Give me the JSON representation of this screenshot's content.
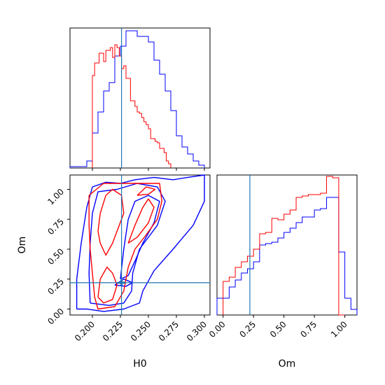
{
  "chart_data": [
    {
      "id": "hist-h0",
      "type": "histogram",
      "xlim": [
        0.18,
        0.305
      ],
      "xticks": [
        0.2,
        0.225,
        0.25,
        0.275,
        0.3
      ],
      "truth": 0.226,
      "truth_color": "#1f77b4",
      "series": [
        {
          "color": "#0000ff",
          "bins": [
            0.18,
            0.185,
            0.19,
            0.195,
            0.2,
            0.205,
            0.21,
            0.215,
            0.22,
            0.225,
            0.23,
            0.235,
            0.24,
            0.245,
            0.25,
            0.255,
            0.26,
            0.265,
            0.27,
            0.275,
            0.28,
            0.285,
            0.29,
            0.295,
            0.3
          ],
          "counts": [
            0.01,
            0.01,
            0.01,
            0.05,
            0.25,
            0.4,
            0.55,
            0.61,
            0.8,
            0.87,
            0.98,
            0.98,
            0.94,
            0.94,
            0.9,
            0.77,
            0.67,
            0.55,
            0.41,
            0.23,
            0.15,
            0.1,
            0.05,
            0.02
          ]
        },
        {
          "color": "#ff0000",
          "bins": [
            0.2,
            0.202,
            0.204,
            0.206,
            0.208,
            0.21,
            0.212,
            0.214,
            0.216,
            0.218,
            0.22,
            0.222,
            0.224,
            0.226,
            0.228,
            0.23,
            0.232,
            0.234,
            0.236,
            0.238,
            0.24,
            0.242,
            0.244,
            0.246,
            0.248,
            0.25,
            0.252,
            0.254,
            0.256,
            0.258,
            0.26,
            0.262,
            0.264,
            0.266,
            0.268,
            0.27
          ],
          "counts": [
            0.66,
            0.75,
            0.75,
            0.82,
            0.82,
            0.76,
            0.84,
            0.84,
            0.86,
            0.79,
            0.88,
            0.86,
            0.8,
            0.71,
            0.73,
            0.64,
            0.64,
            0.48,
            0.48,
            0.44,
            0.4,
            0.39,
            0.36,
            0.33,
            0.31,
            0.28,
            0.21,
            0.21,
            0.19,
            0.18,
            0.14,
            0.14,
            0.11,
            0.05,
            0.03
          ]
        }
      ]
    },
    {
      "id": "contour-h0-om",
      "type": "contour",
      "xlabel": "H0",
      "ylabel": "Om",
      "xlim": [
        0.18,
        0.305
      ],
      "ylim": [
        -0.05,
        1.12
      ],
      "xticks": [
        0.2,
        0.225,
        0.25,
        0.275,
        0.3
      ],
      "yticks": [
        0.0,
        0.25,
        0.5,
        0.75,
        1.0
      ],
      "xticklabels": [
        "0.200",
        "0.225",
        "0.250",
        "0.275",
        "0.300"
      ],
      "yticklabels": [
        "0.00",
        "0.25",
        "0.50",
        "0.75",
        "1.00"
      ],
      "truth_x": 0.226,
      "truth_y": 0.22,
      "truth_color": "#1f77b4",
      "series": [
        {
          "color": "#0000ff",
          "contours": [
            [
              [
                0.186,
                0.0
              ],
              [
                0.186,
                0.25
              ],
              [
                0.19,
                0.55
              ],
              [
                0.195,
                0.85
              ],
              [
                0.2,
                1.02
              ],
              [
                0.212,
                1.06
              ],
              [
                0.225,
                1.05
              ],
              [
                0.238,
                1.08
              ],
              [
                0.255,
                1.1
              ],
              [
                0.272,
                1.08
              ],
              [
                0.285,
                1.1
              ],
              [
                0.3,
                1.12
              ],
              [
                0.3,
                0.9
              ],
              [
                0.29,
                0.7
              ],
              [
                0.272,
                0.5
              ],
              [
                0.255,
                0.32
              ],
              [
                0.245,
                0.15
              ],
              [
                0.242,
                0.05
              ],
              [
                0.228,
                0.0
              ],
              [
                0.21,
                -0.02
              ],
              [
                0.195,
                0.0
              ],
              [
                0.186,
                0.0
              ]
            ],
            [
              [
                0.198,
                0.05
              ],
              [
                0.197,
                0.3
              ],
              [
                0.198,
                0.55
              ],
              [
                0.2,
                0.8
              ],
              [
                0.205,
                0.98
              ],
              [
                0.222,
                1.0
              ],
              [
                0.24,
                1.05
              ],
              [
                0.258,
                1.02
              ],
              [
                0.265,
                0.9
              ],
              [
                0.258,
                0.7
              ],
              [
                0.242,
                0.5
              ],
              [
                0.236,
                0.3
              ],
              [
                0.235,
                0.15
              ],
              [
                0.228,
                0.05
              ],
              [
                0.215,
                0.03
              ],
              [
                0.198,
                0.05
              ]
            ],
            [
              [
                0.225,
                0.25
              ],
              [
                0.228,
                0.5
              ],
              [
                0.232,
                0.75
              ],
              [
                0.238,
                0.9
              ],
              [
                0.25,
                0.95
              ],
              [
                0.26,
                0.9
              ],
              [
                0.255,
                0.72
              ],
              [
                0.245,
                0.55
              ],
              [
                0.238,
                0.4
              ],
              [
                0.232,
                0.28
              ],
              [
                0.225,
                0.25
              ]
            ],
            [
              [
                0.22,
                0.2
              ],
              [
                0.23,
                0.19
              ],
              [
                0.236,
                0.22
              ],
              [
                0.228,
                0.25
              ],
              [
                0.22,
                0.2
              ]
            ]
          ]
        },
        {
          "color": "#ff0000",
          "contours": [
            [
              [
                0.197,
                0.95
              ],
              [
                0.197,
                0.7
              ],
              [
                0.198,
                0.5
              ],
              [
                0.2,
                0.3
              ],
              [
                0.202,
                0.1
              ],
              [
                0.205,
                0.0
              ],
              [
                0.22,
                0.02
              ],
              [
                0.228,
                0.15
              ],
              [
                0.232,
                0.35
              ],
              [
                0.238,
                0.5
              ],
              [
                0.248,
                0.62
              ],
              [
                0.258,
                0.75
              ],
              [
                0.262,
                0.9
              ],
              [
                0.26,
                1.05
              ],
              [
                0.245,
                1.05
              ],
              [
                0.23,
                1.05
              ],
              [
                0.21,
                1.05
              ],
              [
                0.197,
                0.95
              ]
            ],
            [
              [
                0.205,
                0.65
              ],
              [
                0.207,
                0.8
              ],
              [
                0.212,
                0.95
              ],
              [
                0.218,
                1.0
              ],
              [
                0.226,
                0.95
              ],
              [
                0.228,
                0.8
              ],
              [
                0.224,
                0.7
              ],
              [
                0.218,
                0.55
              ],
              [
                0.212,
                0.45
              ],
              [
                0.207,
                0.55
              ],
              [
                0.205,
                0.65
              ]
            ],
            [
              [
                0.205,
                0.1
              ],
              [
                0.207,
                0.25
              ],
              [
                0.213,
                0.35
              ],
              [
                0.218,
                0.3
              ],
              [
                0.222,
                0.2
              ],
              [
                0.218,
                0.08
              ],
              [
                0.21,
                0.05
              ],
              [
                0.205,
                0.1
              ]
            ],
            [
              [
                0.232,
                0.55
              ],
              [
                0.238,
                0.7
              ],
              [
                0.245,
                0.85
              ],
              [
                0.25,
                0.92
              ],
              [
                0.255,
                0.85
              ],
              [
                0.25,
                0.72
              ],
              [
                0.24,
                0.6
              ],
              [
                0.232,
                0.55
              ]
            ],
            [
              [
                0.24,
                0.95
              ],
              [
                0.248,
                1.02
              ],
              [
                0.256,
                1.0
              ],
              [
                0.25,
                0.96
              ],
              [
                0.24,
                0.95
              ]
            ]
          ]
        }
      ]
    },
    {
      "id": "hist-om",
      "type": "histogram",
      "xlabel": "Om",
      "xlim": [
        -0.05,
        1.1
      ],
      "xticks": [
        0.0,
        0.25,
        0.5,
        0.75,
        1.0
      ],
      "xticklabels": [
        "0.00",
        "0.25",
        "0.50",
        "0.75",
        "1.00"
      ],
      "truth": 0.22,
      "truth_color": "#1f77b4",
      "series": [
        {
          "color": "#0000ff",
          "bins": [
            -0.05,
            0.0,
            0.05,
            0.1,
            0.15,
            0.2,
            0.25,
            0.3,
            0.35,
            0.4,
            0.45,
            0.5,
            0.55,
            0.6,
            0.65,
            0.7,
            0.75,
            0.8,
            0.85,
            0.9,
            0.95,
            1.0,
            1.05,
            1.1
          ],
          "counts": [
            0.12,
            0.12,
            0.2,
            0.25,
            0.3,
            0.33,
            0.38,
            0.5,
            0.51,
            0.52,
            0.55,
            0.59,
            0.62,
            0.66,
            0.7,
            0.7,
            0.75,
            0.76,
            0.84,
            0.84,
            0.45,
            0.12,
            0.04
          ]
        },
        {
          "color": "#ff0000",
          "bins": [
            0.0,
            0.05,
            0.1,
            0.15,
            0.2,
            0.25,
            0.3,
            0.35,
            0.4,
            0.45,
            0.5,
            0.55,
            0.6,
            0.65,
            0.7,
            0.75,
            0.8,
            0.85,
            0.9,
            0.95,
            1.0
          ],
          "counts": [
            0.24,
            0.27,
            0.34,
            0.38,
            0.42,
            0.47,
            0.58,
            0.59,
            0.69,
            0.68,
            0.72,
            0.75,
            0.84,
            0.85,
            0.86,
            0.86,
            0.87,
            0.99,
            0.98,
            0.0
          ]
        }
      ]
    }
  ]
}
